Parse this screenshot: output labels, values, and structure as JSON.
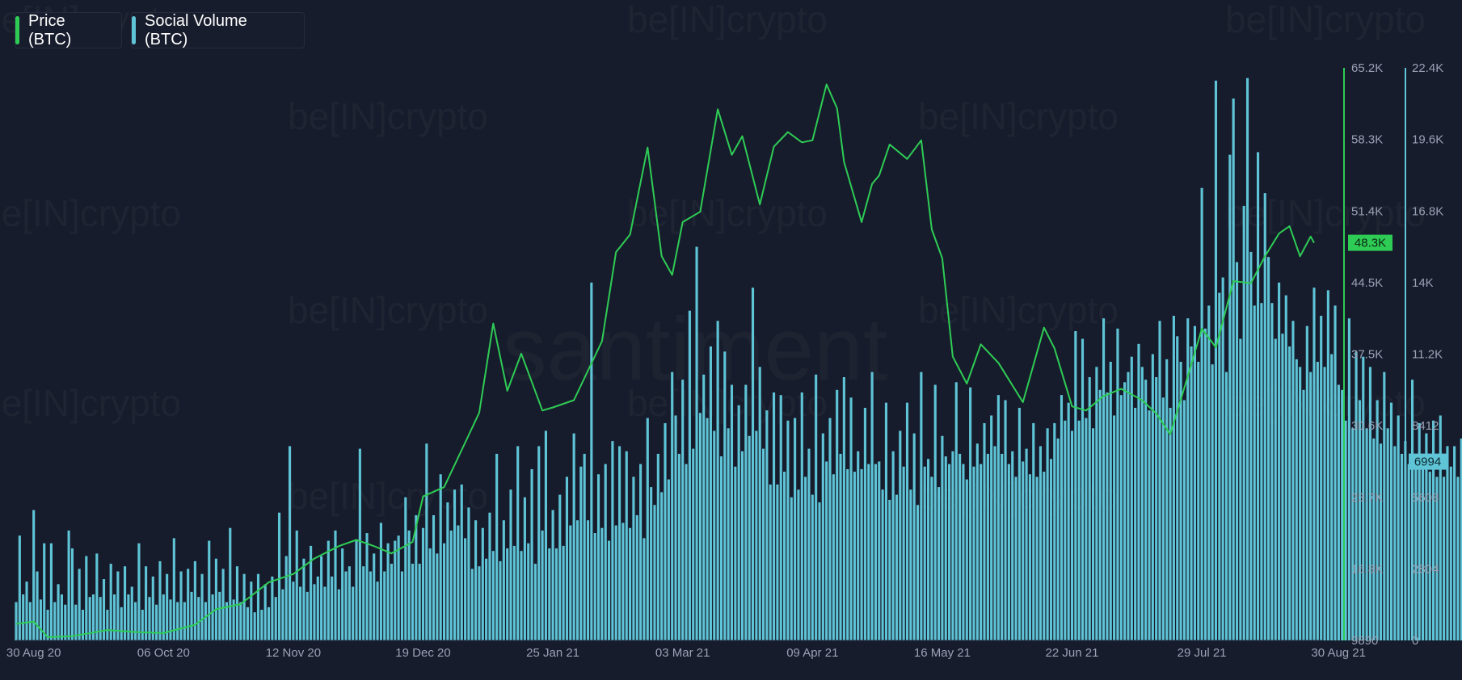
{
  "legend": {
    "price_label": "Price (BTC)",
    "social_label": "Social Volume (BTC)"
  },
  "watermarks": {
    "brand": "be[IN]crypto",
    "source": "santiment"
  },
  "colors": {
    "background": "#171c2c",
    "price_line": "#2ecc55",
    "social_bar": "#5ec4d6",
    "price_axis": "#2ecc55",
    "social_axis": "#5ec4d6",
    "tick_text": "#9aa2b5"
  },
  "chart_data": {
    "type": "bar+line",
    "x_range": [
      "2020-08-25",
      "2021-08-30"
    ],
    "x_ticks": [
      "30 Aug 20",
      "06 Oct 20",
      "12 Nov 20",
      "19 Dec 20",
      "25 Jan 21",
      "03 Mar 21",
      "09 Apr 21",
      "16 May 21",
      "22 Jun 21",
      "29 Jul 21",
      "30 Aug 21"
    ],
    "x_tick_dates": [
      "2020-08-30",
      "2020-10-06",
      "2020-11-12",
      "2020-12-19",
      "2021-01-25",
      "2021-03-03",
      "2021-04-09",
      "2021-05-16",
      "2021-06-22",
      "2021-07-29",
      "2021-08-30"
    ],
    "price_axis": {
      "label": "Price (BTC)",
      "ticks": [
        "9890",
        "16.8K",
        "23.7K",
        "30.6K",
        "37.5K",
        "44.5K",
        "51.4K",
        "58.3K",
        "65.2K"
      ],
      "range": [
        9890,
        65200
      ],
      "last_value_badge": "48.3K"
    },
    "social_axis": {
      "label": "Social Volume (BTC)",
      "ticks": [
        "0",
        "2804",
        "5608",
        "8412",
        "11.2K",
        "14K",
        "16.8K",
        "19.6K",
        "22.4K"
      ],
      "range": [
        0,
        22400
      ],
      "last_value_badge": "6994"
    },
    "series": [
      {
        "name": "Price (BTC)",
        "kind": "line",
        "points": [
          [
            "2020-08-25",
            11500
          ],
          [
            "2020-08-30",
            11700
          ],
          [
            "2020-09-03",
            10200
          ],
          [
            "2020-09-10",
            10300
          ],
          [
            "2020-09-20",
            10900
          ],
          [
            "2020-09-28",
            10700
          ],
          [
            "2020-10-06",
            10600
          ],
          [
            "2020-10-15",
            11400
          ],
          [
            "2020-10-21",
            12900
          ],
          [
            "2020-10-28",
            13400
          ],
          [
            "2020-11-05",
            15500
          ],
          [
            "2020-11-12",
            16300
          ],
          [
            "2020-11-18",
            17800
          ],
          [
            "2020-11-25",
            19000
          ],
          [
            "2020-11-30",
            19600
          ],
          [
            "2020-12-05",
            19000
          ],
          [
            "2020-12-10",
            18300
          ],
          [
            "2020-12-16",
            19400
          ],
          [
            "2020-12-19",
            23800
          ],
          [
            "2020-12-25",
            24700
          ],
          [
            "2020-12-31",
            29000
          ],
          [
            "2021-01-04",
            31900
          ],
          [
            "2021-01-08",
            40500
          ],
          [
            "2021-01-12",
            34000
          ],
          [
            "2021-01-16",
            37600
          ],
          [
            "2021-01-22",
            32100
          ],
          [
            "2021-01-25",
            32400
          ],
          [
            "2021-01-31",
            33100
          ],
          [
            "2021-02-08",
            38800
          ],
          [
            "2021-02-12",
            47400
          ],
          [
            "2021-02-16",
            49100
          ],
          [
            "2021-02-21",
            57500
          ],
          [
            "2021-02-25",
            47000
          ],
          [
            "2021-02-28",
            45200
          ],
          [
            "2021-03-03",
            50300
          ],
          [
            "2021-03-08",
            51300
          ],
          [
            "2021-03-13",
            61200
          ],
          [
            "2021-03-17",
            56800
          ],
          [
            "2021-03-20",
            58600
          ],
          [
            "2021-03-25",
            52000
          ],
          [
            "2021-03-29",
            57600
          ],
          [
            "2021-04-02",
            59000
          ],
          [
            "2021-04-06",
            58000
          ],
          [
            "2021-04-09",
            58200
          ],
          [
            "2021-04-13",
            63600
          ],
          [
            "2021-04-16",
            61300
          ],
          [
            "2021-04-18",
            56100
          ],
          [
            "2021-04-23",
            50300
          ],
          [
            "2021-04-26",
            54000
          ],
          [
            "2021-04-28",
            54800
          ],
          [
            "2021-05-01",
            57800
          ],
          [
            "2021-05-06",
            56400
          ],
          [
            "2021-05-10",
            58200
          ],
          [
            "2021-05-13",
            49600
          ],
          [
            "2021-05-16",
            46800
          ],
          [
            "2021-05-19",
            37300
          ],
          [
            "2021-05-23",
            34700
          ],
          [
            "2021-05-27",
            38500
          ],
          [
            "2021-06-01",
            36700
          ],
          [
            "2021-06-08",
            32900
          ],
          [
            "2021-06-14",
            40100
          ],
          [
            "2021-06-17",
            38100
          ],
          [
            "2021-06-22",
            32500
          ],
          [
            "2021-06-26",
            32100
          ],
          [
            "2021-07-01",
            33500
          ],
          [
            "2021-07-06",
            34200
          ],
          [
            "2021-07-12",
            33100
          ],
          [
            "2021-07-16",
            31800
          ],
          [
            "2021-07-20",
            29800
          ],
          [
            "2021-07-25",
            35400
          ],
          [
            "2021-07-29",
            40000
          ],
          [
            "2021-08-02",
            38200
          ],
          [
            "2021-08-07",
            44600
          ],
          [
            "2021-08-12",
            44400
          ],
          [
            "2021-08-16",
            47000
          ],
          [
            "2021-08-20",
            49200
          ],
          [
            "2021-08-23",
            49900
          ],
          [
            "2021-08-26",
            47000
          ],
          [
            "2021-08-29",
            48900
          ],
          [
            "2021-08-30",
            48300
          ]
        ]
      },
      {
        "name": "Social Volume (BTC)",
        "kind": "bar",
        "daily_from": "2020-08-25",
        "values": [
          1500,
          4100,
          1800,
          2300,
          1500,
          5100,
          2700,
          1600,
          3800,
          1200,
          3800,
          1500,
          2200,
          1800,
          1400,
          4300,
          3600,
          1400,
          2800,
          1200,
          3300,
          1700,
          1800,
          3400,
          1700,
          2400,
          1200,
          3000,
          1800,
          2700,
          1300,
          2900,
          1800,
          2100,
          1500,
          3800,
          1200,
          2900,
          1700,
          2500,
          1400,
          3100,
          1800,
          2600,
          1600,
          4000,
          1500,
          2700,
          1500,
          2800,
          1900,
          3100,
          1700,
          2600,
          1500,
          3900,
          1800,
          3200,
          1900,
          2800,
          1500,
          4400,
          1600,
          2900,
          1500,
          2600,
          1300,
          2300,
          1100,
          2600,
          1200,
          2200,
          1300,
          2500,
          1700,
          5000,
          2000,
          3300,
          7600,
          2300,
          4300,
          2100,
          3200,
          1900,
          3700,
          2200,
          2500,
          3300,
          2100,
          3900,
          2500,
          4300,
          2000,
          3600,
          2700,
          2900,
          2100,
          3900,
          7500,
          2900,
          4200,
          2700,
          3400,
          2300,
          4600,
          2700,
          3800,
          3000,
          3900,
          4100,
          2700,
          5600,
          4300,
          3000,
          4900,
          3000,
          4400,
          7700,
          3600,
          4900,
          3400,
          6500,
          3800,
          5400,
          4300,
          5900,
          4500,
          6100,
          4000,
          5200,
          2800,
          4700,
          2900,
          4400,
          3200,
          5000,
          3500,
          7300,
          3100,
          4700,
          3600,
          5900,
          3700,
          7600,
          3500,
          5600,
          3800,
          6700,
          3000,
          7600,
          4300,
          8200,
          3600,
          5100,
          3600,
          5700,
          3700,
          6400,
          4500,
          8100,
          4700,
          6800,
          7300,
          4700,
          14000,
          4200,
          6500,
          4400,
          6900,
          3900,
          7800,
          4500,
          7600,
          4600,
          7400,
          4400,
          6400,
          4900,
          6900,
          4000,
          8700,
          6000,
          5300,
          7300,
          5800,
          8500,
          6300,
          10500,
          8800,
          7300,
          10200,
          6900,
          12900,
          7500,
          15400,
          8900,
          10400,
          8700,
          11500,
          8200,
          12500,
          7200,
          11300,
          8300,
          10000,
          6800,
          9200,
          7400,
          10000,
          8000,
          13800,
          8200,
          10700,
          7500,
          9000,
          6100,
          9700,
          6100,
          9600,
          6600,
          8600,
          5600,
          8700,
          5900,
          9700,
          6400,
          7500,
          5700,
          10400,
          5400,
          8100,
          7000,
          8700,
          6500,
          9800,
          7300,
          10300,
          6700,
          9500,
          6600,
          7400,
          6700,
          9100,
          6900,
          10500,
          6900,
          7000,
          5900,
          9300,
          5500,
          7400,
          5700,
          8200,
          6800,
          9300,
          5900,
          8100,
          5300,
          10500,
          6800,
          7100,
          6400,
          10000,
          6000,
          8000,
          7200,
          6900,
          7400,
          10100,
          7300,
          6900,
          6300,
          9900,
          6800,
          7700,
          6900,
          8500,
          7300,
          8800,
          7600,
          9600,
          7300,
          9400,
          6900,
          7400,
          6400,
          9100,
          7000,
          7500,
          6500,
          8500,
          6400,
          7600,
          6600,
          8300,
          7100,
          8500,
          7900,
          9600,
          8600,
          9300,
          8200,
          12100,
          8600,
          11800,
          8700,
          10300,
          8300,
          10700,
          9800,
          12600,
          9700,
          10900,
          8800,
          12200,
          9600,
          10100,
          10500,
          11100,
          9100,
          11600,
          10700,
          10200,
          9000,
          11200,
          10300,
          12500,
          9500,
          11000,
          9100,
          12700,
          11900,
          10900,
          9400,
          12600,
          11500,
          12300,
          10900,
          17700,
          12200,
          13100,
          10800,
          21900,
          13600,
          14200,
          10500,
          19000,
          21200,
          14800,
          11800,
          17000,
          22000,
          15200,
          13100,
          19100,
          13200,
          17500,
          15000,
          13200,
          11800,
          14000,
          12000,
          13500,
          11500,
          12500,
          11000,
          10700,
          9800,
          12300,
          10500,
          13800,
          10900,
          12700,
          10700,
          13700,
          11200,
          13100,
          10000,
          9800,
          8600,
          12600,
          8300,
          11300,
          9400,
          11100,
          8300,
          10700,
          7900,
          9400,
          7700,
          10500,
          8300,
          9300,
          7600,
          8800,
          7300,
          7800,
          6900,
          10200,
          7200,
          8500,
          6700,
          8100,
          6600,
          8600,
          6400,
          8800,
          6400,
          7600,
          6800,
          7600,
          6400,
          7900,
          6800,
          7300,
          6400,
          7600,
          6900,
          7800,
          6500,
          9100,
          6500,
          7300,
          6300,
          7800,
          7000,
          8100,
          6900,
          7700,
          6900,
          7400,
          6500,
          7800,
          6800,
          9600,
          7600,
          7800,
          7200,
          7800,
          7500,
          8100,
          8400,
          7000,
          7800,
          9300,
          8600,
          9000,
          8100,
          8200,
          7800,
          9100,
          8000,
          8200,
          9700,
          8200,
          9300,
          8000,
          9300,
          8700,
          10300,
          8200,
          8700,
          7600,
          9200,
          7900,
          10300,
          8100,
          9700,
          8700,
          9000,
          7700,
          10400,
          8900,
          8600,
          7200,
          8400,
          8000,
          9300,
          8200,
          10400,
          8400,
          8400,
          8000,
          10600,
          8800,
          8300,
          7500,
          8500,
          7600,
          9400,
          7800,
          8300,
          7300,
          7800,
          7700,
          6600,
          8200,
          6900,
          7900,
          6400,
          6700,
          6900,
          7000,
          7400,
          6300,
          8100,
          6000,
          6400,
          6300,
          5500,
          6994
        ]
      }
    ]
  }
}
